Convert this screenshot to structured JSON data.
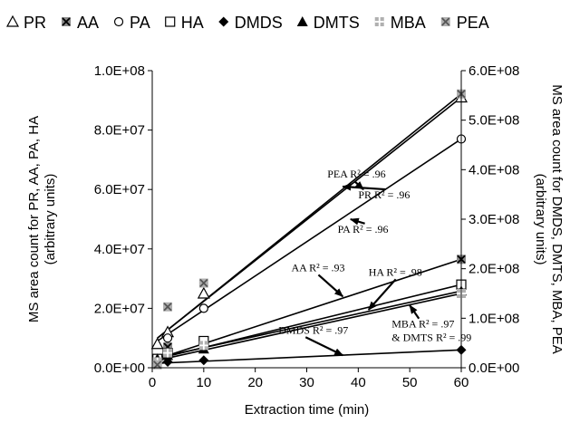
{
  "chart_data": {
    "type": "scatter",
    "xlabel": "Extraction time (min)",
    "ylabel_left": "MS area count for PR, AA, PA, HA (arbitrary units)",
    "ylabel_right": "MS area count for DMDS, DMTS, MBA, PEA (arbitrary units)",
    "xlim": [
      0,
      60
    ],
    "x_ticks": [
      "0",
      "10",
      "20",
      "30",
      "40",
      "50",
      "60"
    ],
    "ylim_left": [
      0,
      100000000
    ],
    "y_ticks_left": [
      "0.0E+00",
      "2.0E+07",
      "4.0E+07",
      "6.0E+07",
      "8.0E+07",
      "1.0E+08"
    ],
    "ylim_right": [
      0,
      600000000
    ],
    "y_ticks_right": [
      "0.0E+00",
      "1.0E+08",
      "2.0E+08",
      "3.0E+08",
      "4.0E+08",
      "5.0E+08",
      "6.0E+08"
    ],
    "legend_position": "top",
    "grid": false,
    "series": [
      {
        "name": "PR",
        "marker": "triangle-open",
        "axis": "left",
        "x": [
          1,
          3,
          10,
          60
        ],
        "y": [
          8000000,
          12000000,
          25000000,
          91000000
        ],
        "fit": [
          [
            1,
            10000000
          ],
          [
            60,
            91000000
          ]
        ]
      },
      {
        "name": "AA",
        "marker": "x-box",
        "axis": "left",
        "x": [
          1,
          3,
          10,
          60
        ],
        "y": [
          3000000,
          7000000,
          8000000,
          36500000
        ],
        "fit": [
          [
            1,
            3000000
          ],
          [
            60,
            36500000
          ]
        ]
      },
      {
        "name": "PA",
        "marker": "circle-open",
        "axis": "left",
        "x": [
          1,
          3,
          10,
          60
        ],
        "y": [
          3000000,
          10000000,
          20000000,
          77000000
        ],
        "fit": [
          [
            1,
            9000000
          ],
          [
            60,
            77000000
          ]
        ]
      },
      {
        "name": "HA",
        "marker": "square-open",
        "axis": "left",
        "x": [
          1,
          3,
          10,
          60
        ],
        "y": [
          3000000,
          5000000,
          9000000,
          28000000
        ],
        "fit": [
          [
            1,
            3000000
          ],
          [
            60,
            28000000
          ]
        ]
      },
      {
        "name": "DMDS",
        "marker": "diamond-filled",
        "axis": "right",
        "x": [
          1,
          3,
          10,
          60
        ],
        "y": [
          9000000,
          12000000,
          15000000,
          36000000
        ],
        "fit": [
          [
            1,
            9000000
          ],
          [
            60,
            36000000
          ]
        ]
      },
      {
        "name": "DMTS",
        "marker": "triangle-filled",
        "axis": "right",
        "x": [
          1,
          3,
          10,
          60
        ],
        "y": [
          18000000,
          25000000,
          38000000,
          155000000
        ],
        "fit": [
          [
            1,
            20000000
          ],
          [
            60,
            155000000
          ]
        ]
      },
      {
        "name": "MBA",
        "marker": "plus-box",
        "axis": "right",
        "x": [
          1,
          3,
          10,
          60
        ],
        "y": [
          12000000,
          30000000,
          45000000,
          150000000
        ],
        "fit": [
          [
            1,
            15000000
          ],
          [
            60,
            150000000
          ]
        ]
      },
      {
        "name": "PEA",
        "marker": "x-box-gray",
        "axis": "right",
        "x": [
          1,
          3,
          10,
          60
        ],
        "y": [
          6000000,
          123000000,
          171000000,
          553000000
        ],
        "fit": [
          [
            1,
            60000000
          ],
          [
            60,
            553000000
          ]
        ]
      }
    ],
    "annotations": [
      {
        "text": "PEA R² = .96",
        "x": 34,
        "y": 64000000,
        "arrow_to": [
          41,
          60000000
        ]
      },
      {
        "text": "PR R² = .96",
        "x": 40,
        "y": 57000000,
        "arrow_to": [
          37,
          61000000
        ]
      },
      {
        "text": "PA R² = .96",
        "x": 36,
        "y": 45500000,
        "arrow_to": [
          38.5,
          50000000
        ]
      },
      {
        "text": "AA R² = .93",
        "x": 27,
        "y": 32500000,
        "arrow_to": [
          37,
          24000000
        ]
      },
      {
        "text": "HA R² = .98",
        "x": 42,
        "y": 31000000,
        "arrow_to": [
          42,
          19500000
        ]
      },
      {
        "text": "MBA R² = .97",
        "x": 46.5,
        "y": 13500000,
        "arrow_to": [
          50,
          21000000
        ]
      },
      {
        "text": "& DMTS R² = .99",
        "x": 46.5,
        "y": 9000000
      },
      {
        "text": "DMDS R² = .97",
        "x": 24.5,
        "y": 11500000,
        "arrow_to": [
          37,
          4200000
        ]
      }
    ]
  }
}
